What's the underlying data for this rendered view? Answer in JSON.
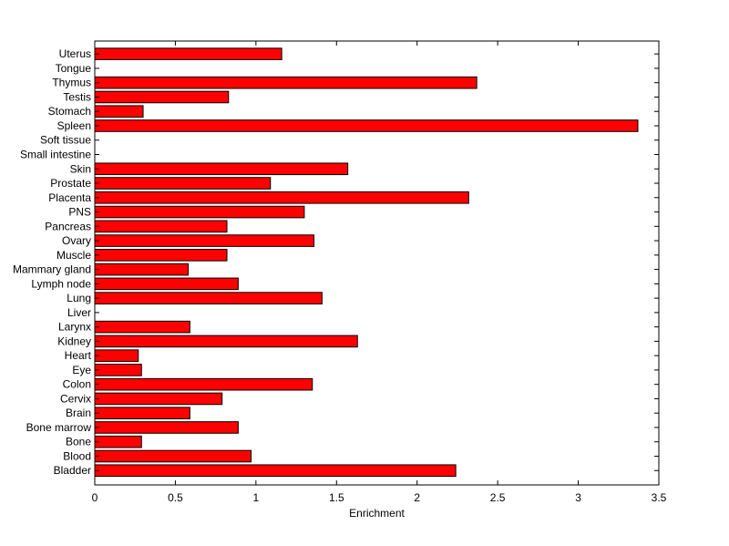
{
  "chart_data": {
    "type": "bar",
    "orientation": "horizontal",
    "title": "",
    "xlabel": "Enrichment",
    "ylabel": "",
    "xlim": [
      0,
      3.5
    ],
    "x_ticks": [
      "0",
      "0.5",
      "1",
      "1.5",
      "2",
      "2.5",
      "3",
      "3.5"
    ],
    "x_tick_values": [
      0,
      0.5,
      1,
      1.5,
      2,
      2.5,
      3,
      3.5
    ],
    "grid": false,
    "legend": "none",
    "bar_color": "#ff0000",
    "categories": [
      "Bladder",
      "Blood",
      "Bone",
      "Bone marrow",
      "Brain",
      "Cervix",
      "Colon",
      "Eye",
      "Heart",
      "Kidney",
      "Larynx",
      "Liver",
      "Lung",
      "Lymph node",
      "Mammary gland",
      "Muscle",
      "Ovary",
      "Pancreas",
      "PNS",
      "Placenta",
      "Prostate",
      "Skin",
      "Small intestine",
      "Soft tissue",
      "Spleen",
      "Stomach",
      "Testis",
      "Thymus",
      "Tongue",
      "Uterus"
    ],
    "values": [
      2.24,
      0.97,
      0.29,
      0.89,
      0.59,
      0.79,
      1.35,
      0.29,
      0.27,
      1.63,
      0.59,
      0,
      1.41,
      0.89,
      0.58,
      0.82,
      1.36,
      0.82,
      1.3,
      2.32,
      1.09,
      1.57,
      0,
      0,
      3.37,
      0.3,
      0.83,
      2.37,
      0,
      1.16
    ]
  }
}
